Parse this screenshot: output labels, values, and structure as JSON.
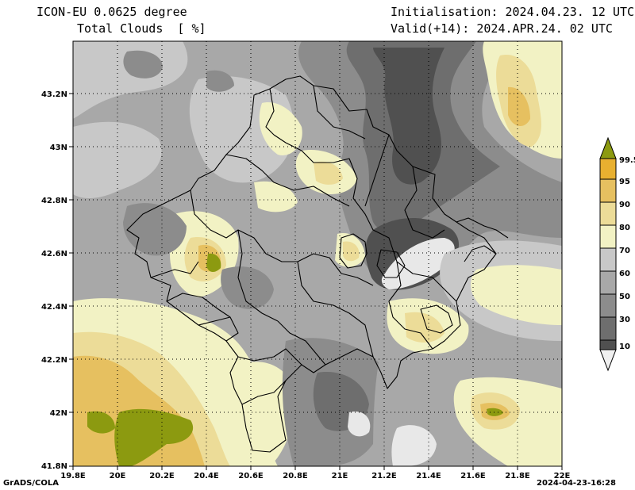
{
  "header": {
    "model": "ICON-EU 0.0625 degree",
    "field": "Total Clouds  [ %]",
    "init": "Initialisation: 2024.04.23. 12 UTC",
    "valid": "Valid(+14): 2024.APR.24. 02 UTC"
  },
  "footer": {
    "credit": "GrADS/COLA",
    "timestamp": "2024-04-23-16:28"
  },
  "axes": {
    "lon_labels": [
      "19.8E",
      "20E",
      "20.2E",
      "20.4E",
      "20.6E",
      "20.8E",
      "21E",
      "21.2E",
      "21.4E",
      "21.6E",
      "21.8E",
      "22E"
    ],
    "lat_labels": [
      "43.2N",
      "43N",
      "42.8N",
      "42.6N",
      "42.4N",
      "42.2N",
      "42N",
      "41.8N"
    ]
  },
  "legend": {
    "labels": [
      "99.5",
      "95",
      "90",
      "80",
      "70",
      "60",
      "50",
      "30",
      "10"
    ],
    "colors": {
      "c10": "#505050",
      "c30": "#6e6e6e",
      "c50": "#8c8c8c",
      "c60": "#a8a8a8",
      "c70": "#c8c8c8",
      "c80": "#f2f2c4",
      "c90": "#ecdc98",
      "c95": "#e6c060",
      "c99": "#e8b030",
      "top": "#8c9a10",
      "low": "#f0f0f0"
    }
  }
}
